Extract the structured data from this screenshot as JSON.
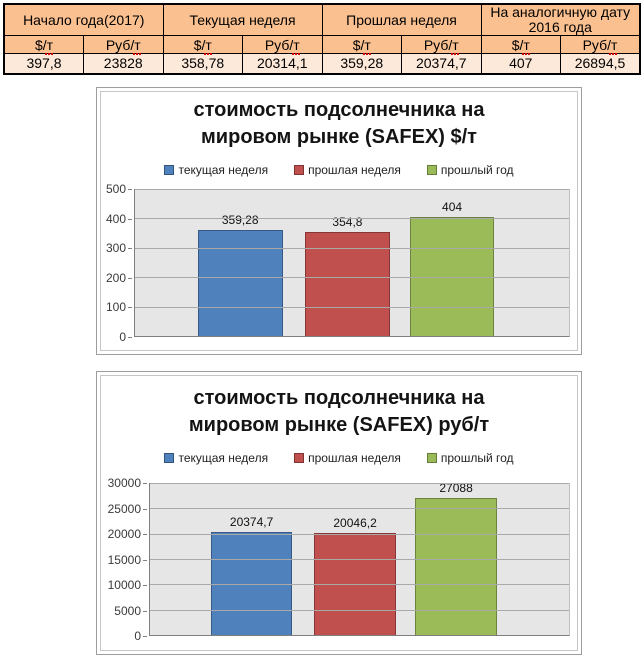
{
  "colors": {
    "table_header_bg": "#FAC090",
    "table_value_bg": "#FDE9D9",
    "series_blue": "#4F81BD",
    "series_red": "#C0504D",
    "series_green": "#9BBB59",
    "plot_bg": "#E6E6E6"
  },
  "table": {
    "groups": [
      {
        "label": "Начало года(2017)",
        "cols": [
          {
            "unit": "$/т",
            "value": "397,8"
          },
          {
            "unit": "Руб/т",
            "value": "23828"
          }
        ]
      },
      {
        "label": "Текущая неделя",
        "cols": [
          {
            "unit": "$/т",
            "value": "358,78"
          },
          {
            "unit": "Руб/т",
            "value": "20314,1"
          }
        ]
      },
      {
        "label": "Прошлая неделя",
        "cols": [
          {
            "unit": "$/т",
            "value": "359,28"
          },
          {
            "unit": "Руб/т",
            "value": "20374,7"
          }
        ]
      },
      {
        "label": "На аналогичную дату 2016 года",
        "cols": [
          {
            "unit": "$/т",
            "value": "407"
          },
          {
            "unit": "Руб/т",
            "value": "26894,5"
          }
        ]
      }
    ]
  },
  "chart_data": [
    {
      "type": "bar",
      "title": "стоимость подсолнечника на мировом рынке (SAFEX) $/т",
      "title_lines": [
        "стоимость подсолнечника на",
        "мировом рынке (SAFEX) $/т"
      ],
      "categories": [
        "текущая неделя",
        "прошлая неделя",
        "прошлый год"
      ],
      "values": [
        359.28,
        354.8,
        404
      ],
      "value_labels": [
        "359,28",
        "354,8",
        "404"
      ],
      "series_colors": [
        "#4F81BD",
        "#C0504D",
        "#9BBB59"
      ],
      "ylim": [
        0,
        500
      ],
      "ytick_step": 100,
      "yticks": [
        "500",
        "400",
        "300",
        "200",
        "100",
        "0"
      ],
      "legend_position": "top",
      "grid": true,
      "xlabel": "",
      "ylabel": ""
    },
    {
      "type": "bar",
      "title": "стоимость подсолнечника на мировом рынке (SAFEX) руб/т",
      "title_lines": [
        "стоимость подсолнечника на",
        "мировом рынке (SAFEX) руб/т"
      ],
      "categories": [
        "текущая неделя",
        "прошлая неделя",
        "прошлый год"
      ],
      "values": [
        20374.7,
        20046.2,
        27088
      ],
      "value_labels": [
        "20374,7",
        "20046,2",
        "27088"
      ],
      "series_colors": [
        "#4F81BD",
        "#C0504D",
        "#9BBB59"
      ],
      "ylim": [
        0,
        30000
      ],
      "ytick_step": 5000,
      "yticks": [
        "30000",
        "25000",
        "20000",
        "15000",
        "10000",
        "5000",
        "0"
      ],
      "legend_position": "top",
      "grid": true,
      "xlabel": "",
      "ylabel": ""
    }
  ]
}
